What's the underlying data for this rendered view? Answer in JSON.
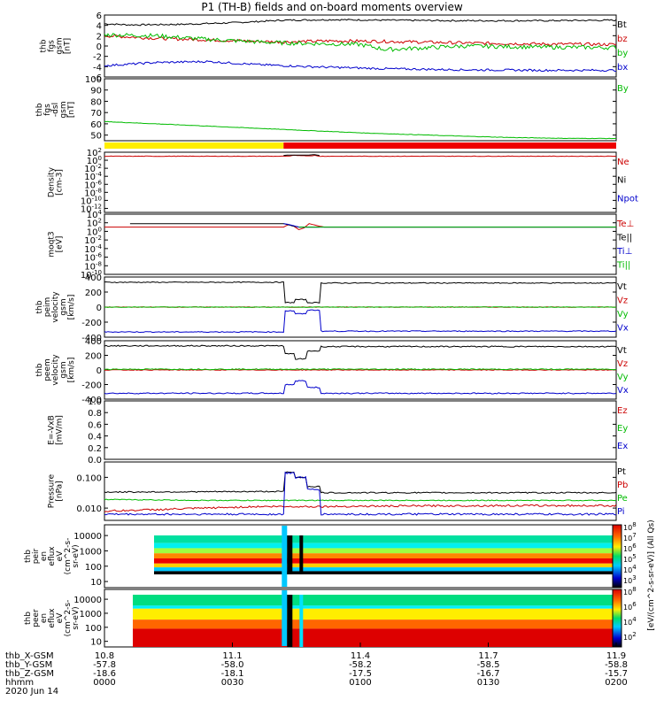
{
  "title": "P1 (TH-B) fields and on-board moments overview",
  "chart_data": [
    {
      "id": "p1",
      "type": "line",
      "ylabel": [
        "thb",
        "fgs",
        "gsm",
        "[nT]"
      ],
      "yticks": [
        "6",
        "4",
        "2",
        "0",
        "-2",
        "-4",
        "-6"
      ],
      "ylim": [
        -6,
        6
      ],
      "series": [
        {
          "name": "Bt",
          "color": "#000000",
          "x": [
            0,
            0.05,
            0.15,
            0.25,
            0.35,
            0.45,
            0.55,
            0.7,
            0.85,
            1
          ],
          "y": [
            4.3,
            4.1,
            4.2,
            4.5,
            5.0,
            5.1,
            5.0,
            4.9,
            4.9,
            5.0
          ],
          "noise": 0.15
        },
        {
          "name": "bz",
          "color": "#cc0000",
          "x": [
            0,
            0.1,
            0.2,
            0.3,
            0.35,
            0.45,
            0.55,
            0.7,
            0.85,
            1
          ],
          "y": [
            2.0,
            1.5,
            1.2,
            0.9,
            0.8,
            1.0,
            0.9,
            0.6,
            0.4,
            0.3
          ],
          "noise": 0.3
        },
        {
          "name": "by",
          "color": "#00bb00",
          "x": [
            0,
            0.1,
            0.2,
            0.3,
            0.35,
            0.5,
            0.55,
            0.7,
            0.85,
            1
          ],
          "y": [
            2.2,
            2.0,
            1.3,
            0.8,
            0.6,
            0.3,
            -0.7,
            0.0,
            -0.2,
            -0.3
          ],
          "noise": 0.4
        },
        {
          "name": "bx",
          "color": "#0000cc",
          "x": [
            0,
            0.1,
            0.2,
            0.3,
            0.4,
            0.55,
            0.7,
            0.85,
            1
          ],
          "y": [
            -3.8,
            -3.2,
            -3.0,
            -3.6,
            -4.0,
            -4.4,
            -4.6,
            -4.7,
            -4.7
          ],
          "noise": 0.2
        }
      ]
    },
    {
      "id": "p2",
      "type": "line",
      "ylabel": [
        "thb",
        "fgs",
        "-dsl",
        "gsm",
        "[nT]"
      ],
      "yticks": [
        "100",
        "90",
        "80",
        "70",
        "60",
        "50"
      ],
      "ylim": [
        45,
        100
      ],
      "series": [
        {
          "name": "By",
          "color": "#00bb00",
          "x": [
            0,
            0.1,
            0.2,
            0.3,
            0.4,
            0.5,
            0.6,
            0.7,
            0.8,
            0.9,
            1
          ],
          "y": [
            62,
            60,
            58,
            56,
            54,
            52,
            50.5,
            49,
            47.8,
            47.1,
            47.0
          ],
          "noise": 0.2
        }
      ]
    },
    {
      "id": "p3",
      "type": "line",
      "log": true,
      "ylabel": [
        "Density",
        "[cm-3]"
      ],
      "yticks": [
        "10^2",
        "10^0",
        "10^-2",
        "10^-4",
        "10^-6",
        "10^-8",
        "10^-10",
        "10^-12"
      ],
      "ylim": [
        -13,
        2
      ],
      "series": [
        {
          "name": "Ne",
          "color": "#cc0000",
          "x": [
            0,
            0.36,
            0.37,
            0.38,
            0.4,
            0.41,
            0.42,
            1
          ],
          "y": [
            1.0,
            1.0,
            1.2,
            1.2,
            1.1,
            1.2,
            1.0,
            1.0
          ],
          "noise": 0.05
        },
        {
          "name": "Ni",
          "color": "#000000",
          "x": [
            0.35,
            0.36,
            0.37,
            0.4,
            0.41,
            0.42
          ],
          "y": [
            1.2,
            1.3,
            1.3,
            1.3,
            1.4,
            1.2
          ],
          "noise": 0
        },
        {
          "name": "Npot",
          "color": "#0000cc",
          "x": [],
          "y": [],
          "noise": 0
        }
      ]
    },
    {
      "id": "p4",
      "type": "line",
      "log": true,
      "ylabel": [
        "moqt3",
        "[eV]"
      ],
      "yticks": [
        "10^4",
        "10^2",
        "10^0",
        "10^-2",
        "10^-4",
        "10^-6",
        "10^-8",
        "10^-10"
      ],
      "ylim": [
        -10,
        4
      ],
      "series": [
        {
          "name": "Te⊥",
          "color": "#cc0000",
          "x": [
            0,
            0.35,
            0.36,
            0.37,
            0.38,
            0.39,
            0.4,
            0.42,
            0.43,
            0.45,
            1
          ],
          "y": [
            1.0,
            1.0,
            1.6,
            1.2,
            0.4,
            0.8,
            1.8,
            1.2,
            1.0,
            1.0,
            1.0
          ],
          "noise": 0
        },
        {
          "name": "Te||",
          "color": "#000000",
          "x": [
            0.05,
            0.35,
            0.36,
            0.37,
            0.38,
            0.42
          ],
          "y": [
            1.8,
            1.8,
            1.5,
            1.2,
            1.0,
            1.0
          ],
          "noise": 0
        },
        {
          "name": "Ti⊥",
          "color": "#0000cc",
          "x": [
            0.35,
            0.36,
            0.37,
            0.38,
            0.42,
            1
          ],
          "y": [
            1.8,
            1.6,
            1.3,
            1.0,
            1.0,
            1.0
          ],
          "noise": 0
        },
        {
          "name": "Ti||",
          "color": "#00bb00",
          "x": [
            0.38,
            0.42,
            1
          ],
          "y": [
            1.0,
            1.0,
            1.0
          ],
          "noise": 0
        }
      ]
    },
    {
      "id": "p5",
      "type": "line",
      "ylabel": [
        "thb",
        "peim",
        "velocity",
        "gsm",
        "[km/s]"
      ],
      "yticks": [
        "400",
        "200",
        "0",
        "-200",
        "-400"
      ],
      "ylim": [
        -400,
        400
      ],
      "series": [
        {
          "name": "Vt",
          "color": "#000000",
          "x": [
            0,
            0.35,
            0.351,
            0.37,
            0.371,
            0.395,
            0.396,
            0.42,
            0.421,
            1
          ],
          "y": [
            330,
            330,
            60,
            60,
            100,
            100,
            60,
            60,
            320,
            320
          ],
          "noise": 6
        },
        {
          "name": "Vz",
          "color": "#cc0000",
          "x": [
            0,
            1
          ],
          "y": [
            0,
            0
          ],
          "noise": 4
        },
        {
          "name": "Vy",
          "color": "#00bb00",
          "x": [
            0,
            1
          ],
          "y": [
            0,
            0
          ],
          "noise": 3
        },
        {
          "name": "Vx",
          "color": "#0000cc",
          "x": [
            0,
            0.35,
            0.351,
            0.37,
            0.371,
            0.395,
            0.396,
            0.42,
            0.421,
            1
          ],
          "y": [
            -330,
            -330,
            -50,
            -50,
            -90,
            -90,
            -40,
            -40,
            -320,
            -320
          ],
          "noise": 6
        }
      ]
    },
    {
      "id": "p6",
      "type": "line",
      "ylabel": [
        "thb",
        "peem",
        "velocity",
        "gsm",
        "[km/s]"
      ],
      "yticks": [
        "400",
        "200",
        "0",
        "-200",
        "-400"
      ],
      "ylim": [
        -400,
        400
      ],
      "series": [
        {
          "name": "Vt",
          "color": "#000000",
          "x": [
            0,
            0.35,
            0.351,
            0.37,
            0.371,
            0.395,
            0.396,
            0.42,
            0.421,
            1
          ],
          "y": [
            330,
            330,
            220,
            220,
            150,
            150,
            260,
            260,
            320,
            320
          ],
          "noise": 8
        },
        {
          "name": "Vz",
          "color": "#cc0000",
          "x": [
            0,
            1
          ],
          "y": [
            0,
            0
          ],
          "noise": 5
        },
        {
          "name": "Vy",
          "color": "#00bb00",
          "x": [
            0,
            1
          ],
          "y": [
            10,
            10
          ],
          "noise": 6
        },
        {
          "name": "Vx",
          "color": "#0000cc",
          "x": [
            0,
            0.35,
            0.351,
            0.37,
            0.371,
            0.395,
            0.396,
            0.42,
            0.421,
            1
          ],
          "y": [
            -320,
            -320,
            -200,
            -200,
            -150,
            -150,
            -240,
            -240,
            -320,
            -320
          ],
          "noise": 8
        }
      ]
    },
    {
      "id": "p7",
      "type": "line",
      "ylabel": [
        "E=-VxB",
        "[mV/m]"
      ],
      "yticks": [
        "1.0",
        "0.8",
        "0.6",
        "0.4",
        "0.2",
        "0.0"
      ],
      "ylim": [
        0,
        1
      ],
      "series": [
        {
          "name": "Ez",
          "color": "#cc0000",
          "x": [],
          "y": [],
          "noise": 0
        },
        {
          "name": "Ey",
          "color": "#00bb00",
          "x": [],
          "y": [],
          "noise": 0
        },
        {
          "name": "Ex",
          "color": "#0000cc",
          "x": [],
          "y": [],
          "noise": 0
        }
      ]
    },
    {
      "id": "p8",
      "type": "line",
      "log": true,
      "ylabel": [
        "Pressure",
        "[nPa]"
      ],
      "yticks": [
        "0.100",
        "0.010"
      ],
      "ytickvals": [
        -1,
        -2
      ],
      "ylim": [
        -2.4,
        -0.5
      ],
      "series": [
        {
          "name": "Pt",
          "color": "#000000",
          "x": [
            0,
            0.35,
            0.351,
            0.37,
            0.371,
            0.395,
            0.396,
            0.42,
            0.421,
            1
          ],
          "y": [
            -1.48,
            -1.46,
            -0.84,
            -0.84,
            -1.0,
            -1.0,
            -1.3,
            -1.3,
            -1.5,
            -1.5
          ],
          "noise": 0.02
        },
        {
          "name": "Pb",
          "color": "#cc0000",
          "x": [
            0,
            0.1,
            0.2,
            0.3,
            0.35,
            0.42,
            0.6,
            0.8,
            1
          ],
          "y": [
            -2.1,
            -2.05,
            -2.0,
            -1.95,
            -1.95,
            -1.95,
            -1.93,
            -1.92,
            -1.92
          ],
          "noise": 0.03
        },
        {
          "name": "Pe",
          "color": "#00bb00",
          "x": [
            0,
            0.2,
            0.35,
            0.42,
            1
          ],
          "y": [
            -1.72,
            -1.75,
            -1.75,
            -1.75,
            -1.75
          ],
          "noise": 0.015
        },
        {
          "name": "Pi",
          "color": "#0000cc",
          "x": [
            0,
            0.35,
            0.351,
            0.37,
            0.371,
            0.395,
            0.396,
            0.42,
            0.421,
            1
          ],
          "y": [
            -2.2,
            -2.2,
            -0.86,
            -0.86,
            -1.0,
            -1.0,
            -1.4,
            -1.4,
            -2.2,
            -2.2
          ],
          "noise": 0.03
        }
      ]
    },
    {
      "id": "p9",
      "type": "heatmap",
      "ylabel": [
        "thb",
        "peir",
        "en",
        "eflux",
        "eV",
        "(cm^2-s-",
        "sr-eV)"
      ],
      "yticks": [
        "10000",
        "1000",
        "100",
        "10"
      ]
    },
    {
      "id": "p10",
      "type": "heatmap",
      "ylabel": [
        "thb",
        "peer",
        "en",
        "eflux",
        "eV",
        "(cm^2-s-",
        "sr-eV)"
      ],
      "yticks": [
        "10000",
        "1000",
        "100",
        "10"
      ]
    }
  ],
  "spacecraft_mode_bar": {
    "colors": [
      "#ffee00",
      "#ee0000"
    ],
    "switch_at": 0.35
  },
  "colorbar": {
    "label": "[eV/(cm^2-s-sr-eV)] (All Qs)",
    "ticks_top": [
      "10^8",
      "10^7",
      "10^6",
      "10^5",
      "10^4",
      "10^3"
    ],
    "ticks_bottom": [
      "10^8",
      "10^6",
      "10^4",
      "10^2"
    ]
  },
  "time_axis": {
    "rows": [
      {
        "label": "thb_X-GSM",
        "values": [
          "10.8",
          "11.1",
          "11.4",
          "11.7",
          "11.9"
        ]
      },
      {
        "label": "thb_Y-GSM",
        "values": [
          "-57.8",
          "-58.0",
          "-58.2",
          "-58.5",
          "-58.8"
        ]
      },
      {
        "label": "thb_Z-GSM",
        "values": [
          "-18.6",
          "-18.1",
          "-17.5",
          "-16.7",
          "-15.7"
        ]
      },
      {
        "label": "hhmm",
        "values": [
          "0000",
          "0030",
          "0100",
          "0130",
          "0200"
        ]
      }
    ],
    "date": "2020 Jun 14"
  }
}
